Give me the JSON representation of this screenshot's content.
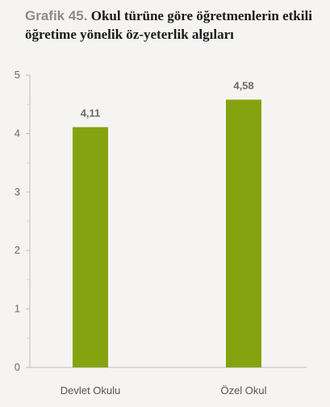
{
  "chart_data": {
    "type": "bar",
    "title_prefix": "Grafik 45.",
    "title": "Okul türüne göre öğretmenlerin etkili öğretime yönelik öz-yeterlik algıları",
    "categories": [
      "Devlet Okulu",
      "Özel Okul"
    ],
    "values": [
      4.11,
      4.58
    ],
    "value_labels": [
      "4,11",
      "4,58"
    ],
    "ylim": [
      0,
      5
    ],
    "yticks": [
      0,
      1,
      2,
      3,
      4,
      5
    ],
    "grid": false,
    "bar_color": "#85a30e"
  }
}
